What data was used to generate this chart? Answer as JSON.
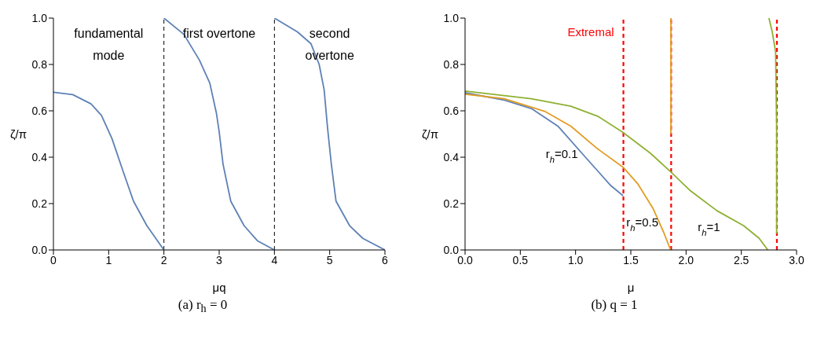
{
  "chart_data": [
    {
      "type": "line",
      "title": "(a) r$_{h}$ = 0",
      "xlabel": "μq",
      "ylabel": "ζ/π",
      "annotations": [
        "fundamental mode",
        "first overtone",
        "second overtone"
      ],
      "series": [
        {
          "color": "#5e81b5",
          "x": [
            0,
            0.35,
            0.68,
            0.87,
            1.06,
            1.26,
            1.45,
            1.69,
            2
          ],
          "values": [
            0.68,
            0.67,
            0.63,
            0.58,
            0.48,
            0.34,
            0.21,
            0.105,
            0
          ]
        },
        {
          "color": "#5e81b5",
          "x": [
            2,
            2.36,
            2.64,
            2.83,
            2.95,
            3,
            3.07,
            3.21,
            3.45,
            3.69,
            4
          ],
          "values": [
            1,
            0.93,
            0.82,
            0.72,
            0.59,
            0.51,
            0.37,
            0.21,
            0.105,
            0.04,
            0
          ]
        },
        {
          "color": "#5e81b5",
          "x": [
            4,
            4.42,
            4.66,
            4.81,
            4.9,
            4.96,
            5.03,
            5.115,
            5.36,
            5.6,
            6
          ],
          "values": [
            1,
            0.94,
            0.89,
            0.8,
            0.69,
            0.53,
            0.37,
            0.21,
            0.105,
            0.05,
            0
          ]
        }
      ],
      "xlim": [
        0,
        6
      ],
      "xticks": [
        0,
        1,
        2,
        3,
        4,
        5,
        6
      ],
      "ylim": [
        0,
        1
      ],
      "yticks": [
        {
          "value": 0,
          "label": "0.0"
        },
        {
          "value": 0.2,
          "label": "0.2"
        },
        {
          "value": 0.4,
          "label": "0.4"
        },
        {
          "value": 0.6,
          "label": "0.6"
        },
        {
          "value": 0.8,
          "label": "0.8"
        },
        {
          "value": 1,
          "label": "1.0"
        }
      ],
      "ref_lines": [
        {
          "axis": "x",
          "value": 2,
          "color": "#000000",
          "line_style": "dashed"
        },
        {
          "axis": "x",
          "value": 4,
          "color": "#000000",
          "line_style": "dashed"
        }
      ],
      "grid": false
    },
    {
      "type": "line",
      "title": "(b) q = 1",
      "xlabel": "μ",
      "ylabel": "ζ/π",
      "series": [
        {
          "name": "r$_{h}$=0.1",
          "color": "#5e81b5",
          "x": [
            0,
            0.356,
            0.6,
            0.84,
            1.08,
            1.32,
            1.43
          ],
          "values": [
            0.678,
            0.646,
            0.61,
            0.534,
            0.405,
            0.277,
            0.234
          ]
        },
        {
          "name": "r$_{h}$=0.5",
          "color": "#e19c24",
          "x": [
            0,
            0.356,
            0.72,
            0.957,
            1.197,
            1.43,
            1.56,
            1.7,
            1.8,
            1.86
          ],
          "values": [
            0.672,
            0.652,
            0.598,
            0.534,
            0.437,
            0.357,
            0.287,
            0.18,
            0.073,
            0
          ]
        },
        {
          "color": "#e19c24",
          "x": [
            1.863,
            1.863
          ],
          "values": [
            0.5,
            1
          ]
        },
        {
          "name": "r$_{h}$=1",
          "color": "#8fb032",
          "x": [
            0,
            0.6,
            0.957,
            1.2,
            1.43,
            1.68,
            1.865,
            2.04,
            2.28,
            2.52,
            2.66,
            2.74
          ],
          "values": [
            0.685,
            0.652,
            0.62,
            0.577,
            0.507,
            0.416,
            0.335,
            0.255,
            0.169,
            0.105,
            0.051,
            0
          ]
        },
        {
          "color": "#8fb032",
          "x": [
            2.75,
            2.78,
            2.81,
            2.82,
            2.82
          ],
          "values": [
            1,
            0.94,
            0.855,
            0.53,
            0.07
          ]
        }
      ],
      "xlim": [
        0,
        3
      ],
      "xticks": [
        {
          "value": 0,
          "label": "0.0"
        },
        {
          "value": 0.5,
          "label": "0.5"
        },
        {
          "value": 1,
          "label": "1.0"
        },
        {
          "value": 1.5,
          "label": "1.5"
        },
        {
          "value": 2,
          "label": "2.0"
        },
        {
          "value": 2.5,
          "label": "2.5"
        },
        {
          "value": 3,
          "label": "3.0"
        }
      ],
      "ylim": [
        0,
        1
      ],
      "yticks": [
        {
          "value": 0,
          "label": "0.0"
        },
        {
          "value": 0.2,
          "label": "0.2"
        },
        {
          "value": 0.4,
          "label": "0.4"
        },
        {
          "value": 0.6,
          "label": "0.6"
        },
        {
          "value": 0.8,
          "label": "0.8"
        },
        {
          "value": 1,
          "label": "1.0"
        }
      ],
      "ref_lines": [
        {
          "axis": "x",
          "value": 1.433,
          "color": "#ff0000",
          "line_style": "dashed",
          "label": "Extremal"
        },
        {
          "axis": "x",
          "value": 1.865,
          "color": "#ff0000",
          "line_style": "dashed"
        },
        {
          "axis": "x",
          "value": 2.822,
          "color": "#ff0000",
          "line_style": "dashed"
        }
      ],
      "grid": false
    }
  ]
}
